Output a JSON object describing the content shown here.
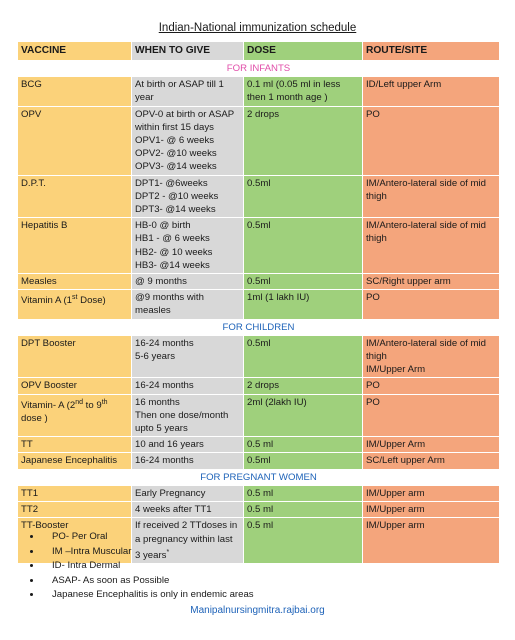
{
  "title": "Indian-National immunization schedule",
  "headers": {
    "vaccine": "VACCINE",
    "when": "WHEN TO GIVE",
    "dose": "DOSE",
    "route": "ROUTE/SITE"
  },
  "sections": {
    "infants": "FOR INFANTS",
    "children": "FOR CHILDREN",
    "pregnant": "FOR PREGNANT WOMEN"
  },
  "infants": [
    {
      "vaccine": "BCG",
      "when": [
        "At birth or ASAP till 1 year"
      ],
      "dose": [
        "0.1 ml (0.05 ml in less then 1 month age )"
      ],
      "route": [
        "ID/Left upper Arm"
      ]
    },
    {
      "vaccine": "OPV",
      "when": [
        "OPV-0 at birth or ASAP within first 15 days",
        "OPV1- @ 6 weeks",
        "OPV2- @10 weeks",
        "OPV3- @14 weeks"
      ],
      "dose": [
        "2 drops"
      ],
      "route": [
        "PO"
      ]
    },
    {
      "vaccine": "D.P.T.",
      "when": [
        "DPT1- @6weeks",
        "DPT2 - @10 weeks",
        "DPT3- @14 weeks"
      ],
      "dose": [
        "0.5ml"
      ],
      "route": [
        "IM/Antero-lateral side of mid thigh"
      ]
    },
    {
      "vaccine": "Hepatitis B",
      "when": [
        "HB-0 @ birth",
        "HB1 - @ 6 weeks",
        "HB2- @ 10 weeks",
        "HB3- @14 weeks"
      ],
      "dose": [
        "0.5ml"
      ],
      "route": [
        "IM/Antero-lateral side of mid thigh"
      ]
    },
    {
      "vaccine": "Measles",
      "when": [
        "@ 9 months"
      ],
      "dose": [
        "0.5ml"
      ],
      "route": [
        "SC/Right upper arm"
      ]
    }
  ],
  "vitamin_a": {
    "vaccine_pre": "Vitamin A (1",
    "vaccine_sup": "st",
    "vaccine_post": " Dose)",
    "when": "@9 months with measles",
    "dose": "1ml (1 lakh IU)",
    "route": "PO"
  },
  "children": [
    {
      "vaccine": "DPT Booster",
      "when": [
        "16-24 months",
        "5-6 years"
      ],
      "dose": [
        "0.5ml"
      ],
      "route": [
        "IM/Antero-lateral side of mid thigh",
        "IM/Upper Arm"
      ]
    },
    {
      "vaccine": "OPV Booster",
      "when": [
        "16-24 months"
      ],
      "dose": [
        "2 drops"
      ],
      "route": [
        "PO"
      ]
    }
  ],
  "vitamin_a2": {
    "vaccine_a": "Vitamin- A (2",
    "sup1": "nd",
    "vaccine_b": " to 9",
    "sup2": "th",
    "vaccine_c": " dose )",
    "when": [
      "16 months",
      "Then one dose/month upto 5 years"
    ],
    "dose": "2ml (2lakh IU)",
    "route": "PO"
  },
  "children2": [
    {
      "vaccine": "TT",
      "when": [
        "10 and 16 years"
      ],
      "dose": [
        "0.5 ml"
      ],
      "route": [
        "IM/Upper Arm"
      ]
    },
    {
      "vaccine": "Japanese Encephalitis",
      "when": [
        "16-24 months"
      ],
      "dose": [
        "0.5ml"
      ],
      "route": [
        "SC/Left upper Arm"
      ]
    }
  ],
  "pregnant": [
    {
      "vaccine": "TT1",
      "when": [
        "Early Pregnancy"
      ],
      "dose": [
        "0.5 ml"
      ],
      "route": [
        "IM/Upper arm"
      ]
    },
    {
      "vaccine": "TT2",
      "when": [
        "4 weeks after TT1"
      ],
      "dose": [
        "0.5 ml"
      ],
      "route": [
        "IM/Upper arm"
      ]
    }
  ],
  "tt_booster": {
    "vaccine": "TT-Booster",
    "when": "If received 2 TTdoses in a pregnancy within last 3 years",
    "when_sup": "*",
    "dose": "0.5 ml",
    "route": "IM/Upper arm"
  },
  "notes": [
    "PO- Per Oral",
    "IM –Intra Muscular",
    "ID- Intra Dermal",
    "ASAP- As soon as Possible",
    "Japanese Encephalitis is only in endemic areas"
  ],
  "footer": "Manipalnursingmitra.rajbai.org",
  "colors": {
    "vaccine_col": "#fbd27a",
    "when_col": "#d8d8d8",
    "dose_col": "#9fd07c",
    "route_col": "#f4a57c",
    "section_infants": "#e14ea9",
    "section_other": "#1d62b8"
  }
}
